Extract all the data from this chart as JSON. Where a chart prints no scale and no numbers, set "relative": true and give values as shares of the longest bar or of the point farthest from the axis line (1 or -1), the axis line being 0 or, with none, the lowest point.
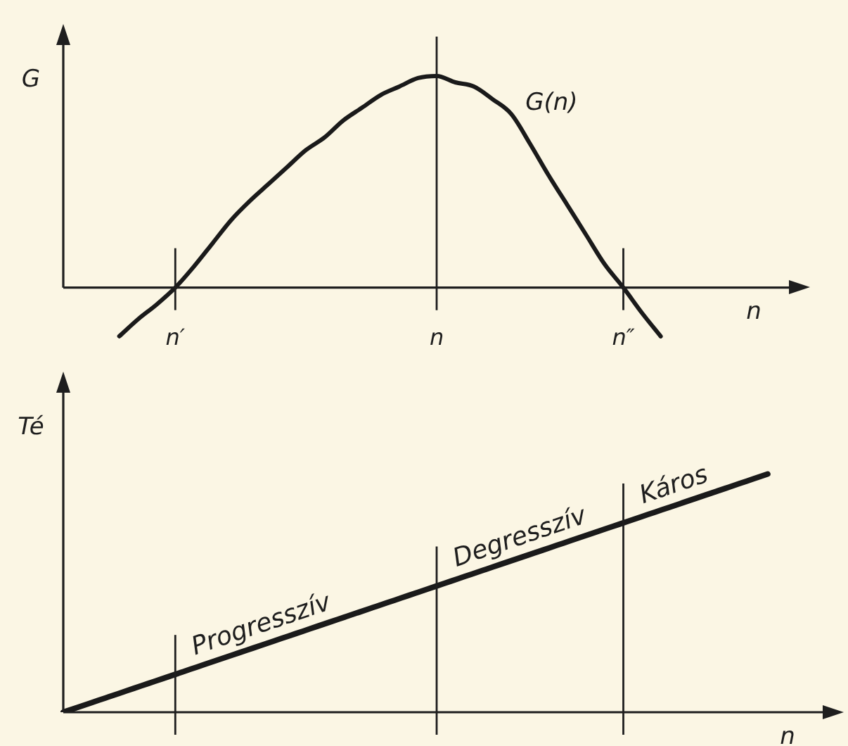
{
  "chart_data": [
    {
      "type": "line",
      "xlabel": "n",
      "ylabel": "G",
      "relative": true,
      "tick_labels": "x",
      "categories": [
        null,
        null,
        null,
        null,
        null,
        null,
        "n′",
        null,
        null,
        null,
        null,
        null,
        null,
        null,
        null,
        null,
        null,
        null,
        null,
        null,
        "n",
        null,
        null,
        null,
        null,
        null,
        null,
        null,
        null,
        null,
        "n″",
        null,
        null,
        null,
        null,
        null,
        null,
        null,
        null,
        null,
        null
      ],
      "series": [
        {
          "name": "G(n)",
          "color": "#1a1a1a",
          "values": [
            null,
            null,
            null,
            -0.23,
            -0.15,
            -0.08,
            0,
            0.1,
            0.21,
            0.32,
            0.41,
            0.49,
            0.57,
            0.65,
            0.71,
            0.79,
            0.85,
            0.91,
            0.95,
            0.99,
            1,
            0.97,
            0.95,
            0.89,
            0.82,
            0.68,
            0.53,
            0.39,
            0.25,
            0.11,
            0,
            -0.12,
            -0.23,
            null,
            null,
            null,
            null,
            null,
            null,
            null,
            null
          ]
        }
      ],
      "ref_lines": [
        {
          "axis": "x",
          "value": "n′"
        },
        {
          "axis": "x",
          "value": "n"
        },
        {
          "axis": "x",
          "value": "n″"
        }
      ]
    },
    {
      "type": "line",
      "xlabel": "n",
      "ylabel": "Té",
      "relative": true,
      "tick_labels": false,
      "categories": [
        null,
        null,
        null,
        null,
        null,
        null,
        null,
        null,
        null,
        null,
        null,
        null,
        null,
        null,
        null,
        null,
        null,
        null,
        null,
        null,
        null,
        null,
        null,
        null,
        null,
        null,
        null,
        null,
        null,
        null,
        null,
        null,
        null,
        null,
        null,
        null,
        null,
        null,
        null,
        null,
        null,
        null,
        null,
        null,
        null,
        null,
        null,
        null,
        null,
        null,
        null,
        null,
        null,
        null,
        null,
        null
      ],
      "series": [
        {
          "color": "#1a1a1a",
          "values": [
            0,
            0.02,
            0.04,
            0.06,
            0.08,
            0.1,
            0.12,
            0.14,
            0.16,
            0.18,
            0.2,
            0.22,
            0.24,
            0.26,
            0.28,
            0.3,
            0.32,
            0.34,
            0.36,
            0.38,
            0.4,
            0.42,
            0.44,
            0.46,
            0.48,
            0.5,
            0.52,
            0.54,
            0.56,
            0.58,
            0.6,
            0.62,
            0.64,
            0.66,
            0.68,
            0.7,
            0.72,
            0.74,
            0.76,
            0.78,
            0.8,
            0.82,
            0.84,
            0.86,
            0.88,
            0.9,
            0.92,
            0.94,
            0.96,
            0.98,
            1,
            null,
            null,
            null,
            null,
            null
          ]
        }
      ],
      "annotations": [
        "Progresszív",
        "Degresszív",
        "Káros"
      ]
    }
  ]
}
